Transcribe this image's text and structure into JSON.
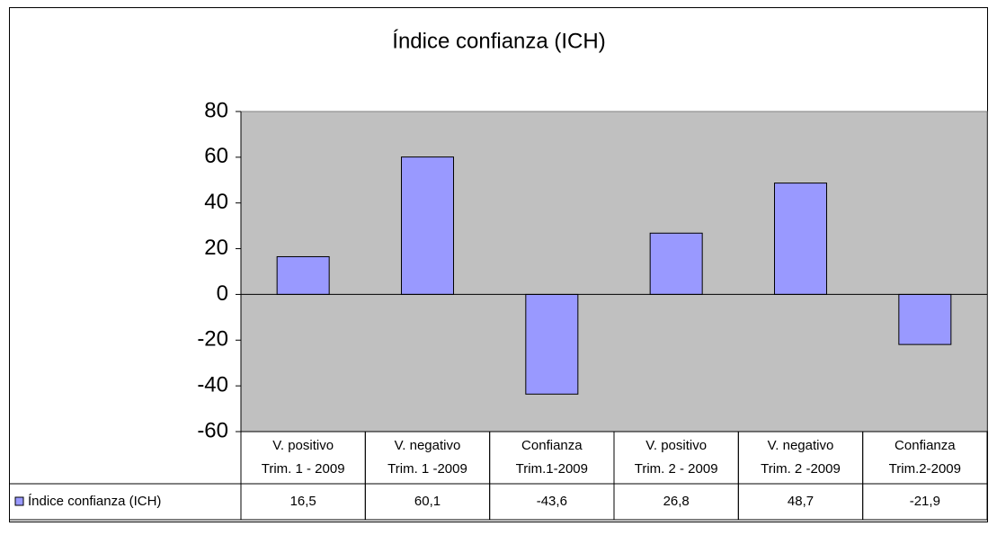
{
  "chart_data": {
    "type": "bar",
    "title": "Índice confianza  (ICH)",
    "categories": [
      [
        "V. positivo",
        "Trim. 1 - 2009"
      ],
      [
        "V. negativo",
        "Trim. 1 -2009"
      ],
      [
        "Confianza",
        "Trim.1-2009"
      ],
      [
        "V. positivo",
        "Trim. 2 - 2009"
      ],
      [
        "V. negativo",
        "Trim. 2 -2009"
      ],
      [
        "Confianza",
        "Trim.2-2009"
      ]
    ],
    "series": [
      {
        "name": "Índice confianza  (ICH)",
        "color": "#9999ff",
        "values": [
          16.5,
          60.1,
          -43.6,
          26.8,
          48.7,
          -21.9
        ],
        "value_labels": [
          "16,5",
          "60,1",
          "-43,6",
          "26,8",
          "48,7",
          "-21,9"
        ]
      }
    ],
    "ylim": [
      -60,
      80
    ],
    "yticks": [
      -60,
      -40,
      -20,
      0,
      20,
      40,
      60,
      80
    ],
    "plot_background": "#c0c0c0",
    "data_table": true
  }
}
